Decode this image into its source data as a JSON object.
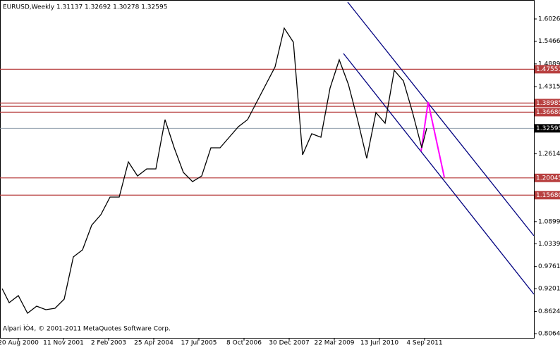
{
  "chart_data": {
    "type": "line",
    "title": "EURUSD,Weekly  1.31137 1.32692 1.30278 1.32595",
    "footer": "Alpari ÌÒ4, © 2001-2011 MetaQuotes Software Corp.",
    "x": [
      "2000-03-12",
      "2000-05-21",
      "2000-08-20",
      "2000-11-19",
      "2001-02-18",
      "2001-05-20",
      "2001-08-19",
      "2001-11-18",
      "2002-02-17",
      "2002-05-19",
      "2002-08-18",
      "2002-11-17",
      "2003-02-16",
      "2003-05-18",
      "2003-08-17",
      "2003-11-16",
      "2004-02-15",
      "2004-05-16",
      "2004-08-15",
      "2004-11-14",
      "2005-02-13",
      "2005-05-15",
      "2005-08-14",
      "2005-11-13",
      "2006-02-12",
      "2006-05-14",
      "2006-08-13",
      "2006-11-12",
      "2007-02-11",
      "2007-05-13",
      "2007-08-12",
      "2007-11-11",
      "2008-02-10",
      "2008-05-11",
      "2008-08-10",
      "2008-11-09",
      "2009-02-08",
      "2009-05-10",
      "2009-08-09",
      "2009-11-08",
      "2010-02-07",
      "2010-05-09",
      "2010-08-08",
      "2010-11-07",
      "2011-02-06",
      "2011-05-08",
      "2011-08-07",
      "2011-09-25"
    ],
    "series": [
      {
        "name": "EURUSD",
        "color": "#000000",
        "values": [
          0.9204,
          0.8847,
          0.9026,
          0.858,
          0.8758,
          0.8669,
          0.8705,
          0.8937,
          1.0005,
          1.0183,
          1.0807,
          1.1074,
          1.1519,
          1.1519,
          1.241,
          1.2054,
          1.2232,
          1.2232,
          1.3479,
          1.2766,
          1.2143,
          1.1911,
          1.2054,
          1.2766,
          1.2766,
          1.3033,
          1.3301,
          1.3479,
          1.3924,
          1.4369,
          1.4815,
          1.5794,
          1.5438,
          1.2588,
          1.3123,
          1.3033,
          1.428,
          1.4993,
          1.4369,
          1.3479,
          1.2499,
          1.3657,
          1.339,
          1.4726,
          1.4458,
          1.3657,
          1.2766,
          1.32595
        ]
      }
    ],
    "xlim": [
      "2000-02-20",
      "2014-08-24"
    ],
    "xticks": [
      {
        "value": "2000-08-20",
        "label": "20 Aug 2000"
      },
      {
        "value": "2001-11-11",
        "label": "11 Nov 2001"
      },
      {
        "value": "2003-02-02",
        "label": "2 Feb 2003"
      },
      {
        "value": "2004-04-25",
        "label": "25 Apr 2004"
      },
      {
        "value": "2005-07-17",
        "label": "17 Jul 2005"
      },
      {
        "value": "2006-10-08",
        "label": "8 Oct 2006"
      },
      {
        "value": "2007-12-30",
        "label": "30 Dec 2007"
      },
      {
        "value": "2009-03-22",
        "label": "22 Mar 2009"
      },
      {
        "value": "2010-06-13",
        "label": "13 Jun 2010"
      },
      {
        "value": "2011-09-04",
        "label": "4 Sep 2011"
      }
    ],
    "ylim": [
      0.7957,
      1.6507
    ],
    "yticks": [
      1.60265,
      1.54665,
      {
        "value": 1.4889,
        "label": "1.48890"
      },
      {
        "value": 1.4315,
        "label": "1.43150"
      },
      {
        "value": 1.2614,
        "label": "1.26140"
      },
      {
        "value": 1.0899,
        "label": "1.08990"
      },
      {
        "value": 1.0339,
        "label": "1.03390"
      },
      0.97615,
      0.92015,
      {
        "value": 0.8624,
        "label": "0.86240"
      },
      {
        "value": 0.8064,
        "label": "0.80640"
      }
    ],
    "levels": [
      {
        "value": 1.47551,
        "label": "1.47551"
      },
      {
        "value": 1.38985,
        "label": "1.38985"
      },
      {
        "value": 1.3815
      },
      {
        "value": 1.3668,
        "label": "1.36680"
      },
      {
        "value": 1.20045,
        "label": "1.20045"
      },
      {
        "value": 1.1568,
        "label": "1.15680"
      }
    ],
    "level_color": "#b84040",
    "current_price": {
      "value": 1.32595,
      "label": "1.32595"
    }
  }
}
